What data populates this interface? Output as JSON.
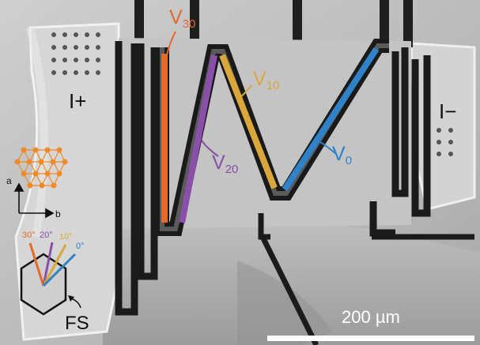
{
  "labels": {
    "v30": {
      "main": "V",
      "sub": "30"
    },
    "v20": {
      "main": "V",
      "sub": "20"
    },
    "v10": {
      "main": "V",
      "sub": "10"
    },
    "v0": {
      "main": "V",
      "sub": "0"
    },
    "i_plus": "I+",
    "i_minus": "I−",
    "fs": "FS",
    "axis_a": "a",
    "axis_b": "b",
    "angles": {
      "a30": "30°",
      "a20": "20°",
      "a10": "10°",
      "a0": "0°"
    },
    "scale_bar": "200 µm"
  },
  "colors": {
    "v30": "#e36b2a",
    "v20": "#8a4fa8",
    "v10": "#d9a73a",
    "v0": "#2f82c7",
    "lattice": "#ef8a2b"
  }
}
